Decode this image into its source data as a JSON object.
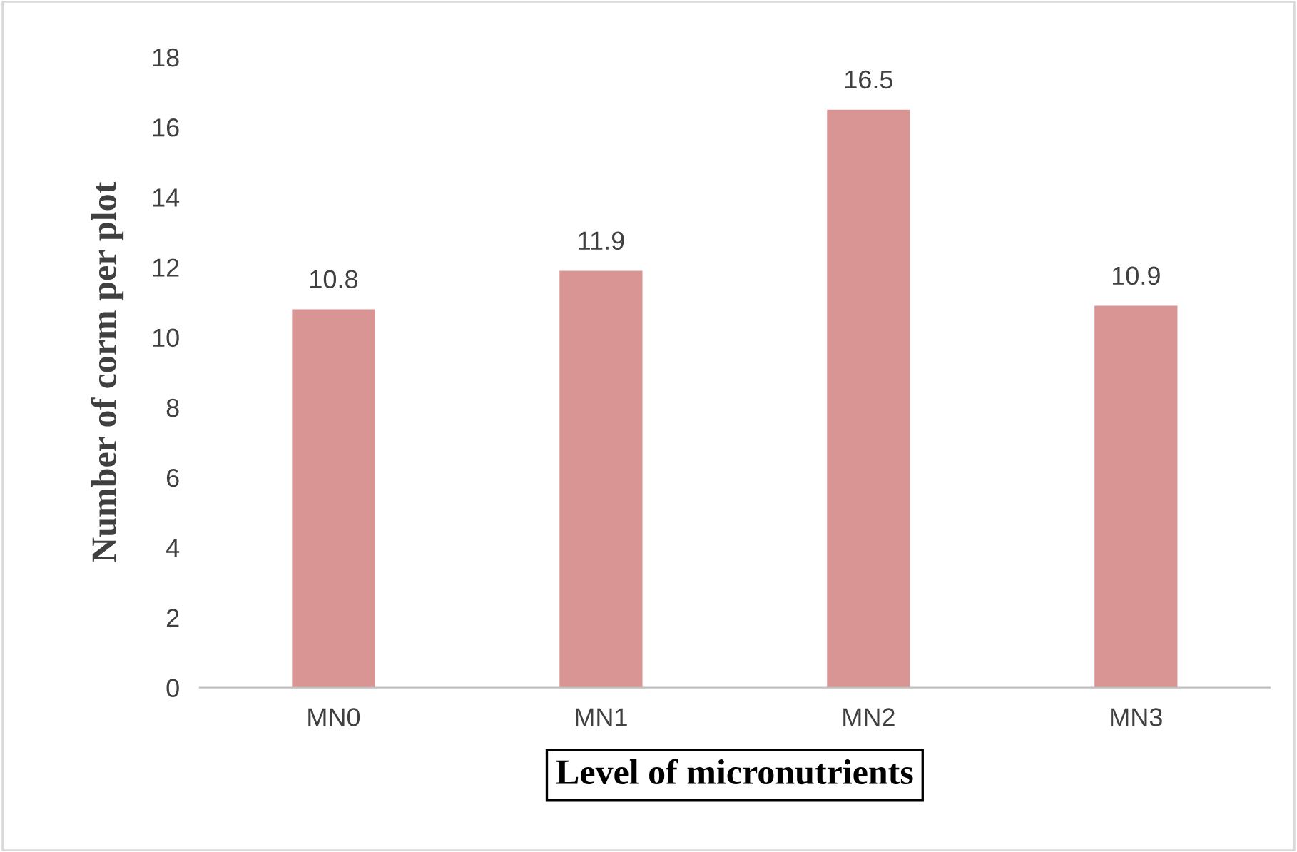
{
  "chart_data": {
    "type": "bar",
    "categories": [
      "MN0",
      "MN1",
      "MN2",
      "MN3"
    ],
    "values": [
      10.8,
      11.9,
      16.5,
      10.9
    ],
    "color": "#d99594",
    "xlabel": "Level of micronutrients",
    "ylabel": "Number of corm per plot",
    "ylim": [
      0,
      18
    ],
    "yticks": [
      0,
      2,
      4,
      6,
      8,
      10,
      12,
      14,
      16,
      18
    ],
    "data_labels": true,
    "grid": false,
    "legend": false
  }
}
